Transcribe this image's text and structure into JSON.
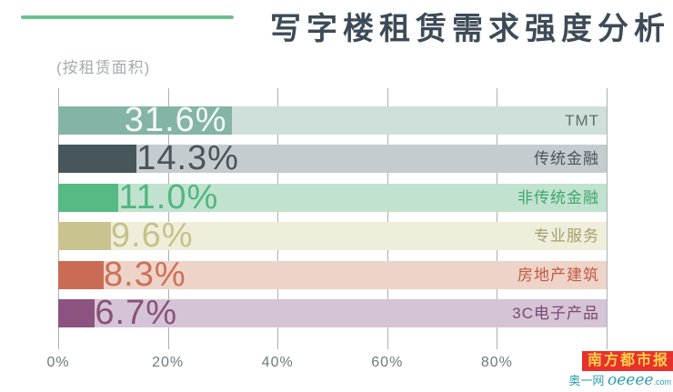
{
  "header": {
    "title": "写字楼租赁需求强度分析",
    "subtitle": "(按租赁面积)",
    "accent_color": "#6fc08f",
    "title_color": "#3d4a57"
  },
  "chart_data": {
    "type": "bar",
    "orientation": "horizontal",
    "title": "写字楼租赁需求强度分析",
    "subtitle": "(按租赁面积)",
    "categories": [
      "TMT",
      "传统金融",
      "非传统金融",
      "专业服务",
      "房地产建筑",
      "3C电子产品"
    ],
    "values": [
      31.6,
      14.3,
      11.0,
      9.6,
      8.3,
      6.7
    ],
    "value_labels": [
      "31.6%",
      "14.3%",
      "11.0%",
      "9.6%",
      "8.3%",
      "6.7%"
    ],
    "xlim": [
      0,
      100
    ],
    "x_grid_values": [
      0,
      20,
      40,
      60,
      80,
      100
    ],
    "x_tick_values": [
      0,
      20,
      40,
      60,
      80
    ],
    "x_tick_labels": [
      "0%",
      "20%",
      "40%",
      "60%",
      "80%"
    ],
    "grid": true,
    "legend": false,
    "gridline_color": "#a9b2b0",
    "tick_label_color": "#6f797d",
    "series_styles": [
      {
        "fill": "#84b4a6",
        "track": "#cfdfd9",
        "value_color": "#f4f8f6",
        "label_color": "#5e6e6c",
        "value_placement": "inside"
      },
      {
        "fill": "#47565a",
        "track": "#c4cccf",
        "value_color": "#4b545a",
        "label_color": "#4b545a",
        "value_placement": "after"
      },
      {
        "fill": "#55ba83",
        "track": "#c0e2cf",
        "value_color": "#52b67f",
        "label_color": "#3fa76d",
        "value_placement": "after"
      },
      {
        "fill": "#c9c48f",
        "track": "#efeedb",
        "value_color": "#c6c189",
        "label_color": "#a29f6c",
        "value_placement": "after"
      },
      {
        "fill": "#ca6b53",
        "track": "#eed3c9",
        "value_color": "#cc7156",
        "label_color": "#c25a42",
        "value_placement": "after"
      },
      {
        "fill": "#8c5380",
        "track": "#d5c4d5",
        "value_color": "#87517c",
        "label_color": "#7b4872",
        "value_placement": "after"
      }
    ]
  },
  "watermark": {
    "line1": "南方都市报",
    "line2_prefix": "奥一网",
    "line2_brand": "oeeee",
    "line2_suffix": ".com",
    "box_color": "#e8312d",
    "text_color": "#ffd24a",
    "sub_color": "#2b9fae"
  }
}
